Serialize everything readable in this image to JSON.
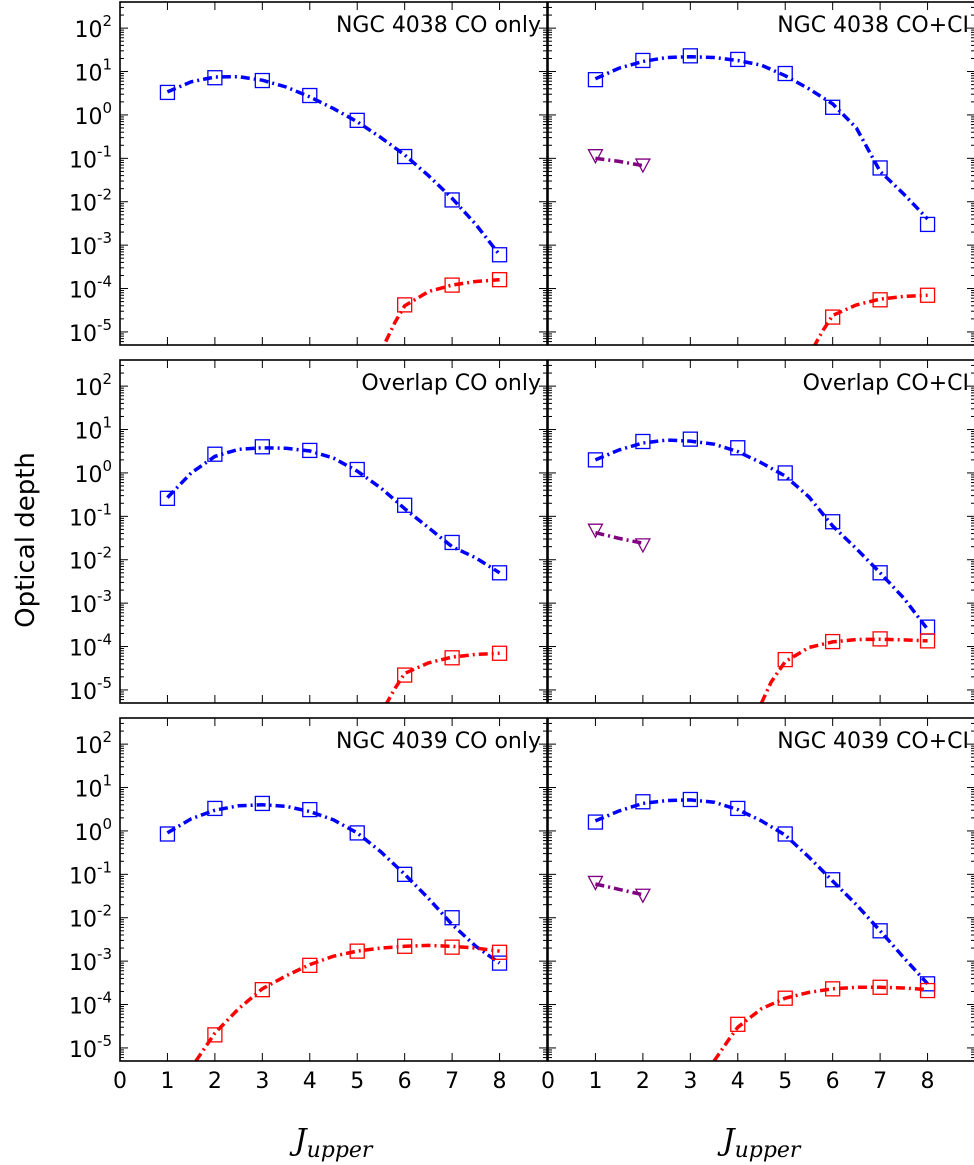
{
  "figure": {
    "ylabel": "Optical depth",
    "xlabel_main": "J",
    "xlabel_sub": "upper",
    "x_ticks": [
      "0",
      "1",
      "2",
      "3",
      "4",
      "5",
      "6",
      "7",
      "8"
    ],
    "y_ticks": [
      {
        "base": "10",
        "exp": "-5"
      },
      {
        "base": "10",
        "exp": "-4"
      },
      {
        "base": "10",
        "exp": "-3"
      },
      {
        "base": "10",
        "exp": "-2"
      },
      {
        "base": "10",
        "exp": "-1"
      },
      {
        "base": "10",
        "exp": "0"
      },
      {
        "base": "10",
        "exp": "1"
      },
      {
        "base": "10",
        "exp": "2"
      }
    ],
    "colors": {
      "component1": "#0000ff",
      "component2": "#ff0000",
      "ci": "#800080"
    }
  },
  "chart_data": [
    {
      "type": "line",
      "title": "NGC 4038 CO only",
      "xlim": [
        0,
        9
      ],
      "ylim": [
        5e-06,
        400
      ],
      "yscale": "log",
      "xlabel": "",
      "ylabel": "Optical depth",
      "series": [
        {
          "color": "#0000ff",
          "line_style": "dash-dot",
          "marker": "square",
          "x": [
            1,
            2,
            3,
            4,
            5,
            6,
            7,
            8
          ],
          "values": [
            3.3,
            7.2,
            6.2,
            2.8,
            0.75,
            0.11,
            0.011,
            0.0006
          ],
          "curve_x": [
            1,
            1.5,
            2,
            2.5,
            3,
            3.5,
            4,
            4.5,
            5,
            5.5,
            6,
            6.5,
            7,
            7.5,
            8
          ],
          "curve": [
            3.4,
            5.8,
            7.5,
            7.6,
            6.3,
            4.4,
            2.6,
            1.4,
            0.7,
            0.3,
            0.12,
            0.04,
            0.012,
            0.003,
            0.0006
          ]
        },
        {
          "color": "#ff0000",
          "line_style": "dash-dot",
          "marker": "square",
          "x": [
            6,
            7,
            8
          ],
          "values": [
            4.2e-05,
            0.00012,
            0.00016
          ],
          "curve_x": [
            5.6,
            5.8,
            6,
            6.5,
            7,
            7.5,
            8
          ],
          "curve": [
            6e-06,
            1.7e-05,
            4e-05,
            8.5e-05,
            0.00012,
            0.000145,
            0.00016
          ]
        }
      ]
    },
    {
      "type": "line",
      "title": "NGC 4038 CO+CI",
      "xlim": [
        0,
        9
      ],
      "ylim": [
        5e-06,
        400
      ],
      "yscale": "log",
      "xlabel": "",
      "ylabel": "",
      "series": [
        {
          "color": "#0000ff",
          "line_style": "dash-dot",
          "marker": "square",
          "x": [
            1,
            2,
            3,
            4,
            5,
            6,
            7,
            8
          ],
          "values": [
            6.5,
            18,
            23,
            19,
            9,
            1.5,
            0.06,
            0.003
          ],
          "curve_x": [
            1,
            1.5,
            2,
            2.5,
            3,
            3.5,
            4,
            4.5,
            5,
            5.5,
            6,
            6.5,
            7,
            7.5,
            8
          ],
          "curve": [
            6.8,
            12,
            17,
            21,
            22,
            21,
            18,
            14,
            8,
            4,
            1.8,
            0.5,
            0.05,
            0.015,
            0.004
          ]
        },
        {
          "color": "#800080",
          "line_style": "dash-dot",
          "marker": "triangle-down",
          "x": [
            1,
            2
          ],
          "values": [
            0.115,
            0.07
          ],
          "curve_x": [
            1,
            1.5,
            2
          ],
          "curve": [
            0.1,
            0.085,
            0.068
          ]
        },
        {
          "color": "#ff0000",
          "line_style": "dash-dot",
          "marker": "square",
          "x": [
            6,
            7,
            8
          ],
          "values": [
            2.2e-05,
            5.5e-05,
            7e-05
          ],
          "curve_x": [
            5.6,
            5.8,
            6,
            6.5,
            7,
            7.5,
            8
          ],
          "curve": [
            4.5e-06,
            1.1e-05,
            2.4e-05,
            4.2e-05,
            5.7e-05,
            6.6e-05,
            7e-05
          ]
        }
      ]
    },
    {
      "type": "line",
      "title": "Overlap CO only",
      "xlim": [
        0,
        9
      ],
      "ylim": [
        5e-06,
        400
      ],
      "yscale": "log",
      "xlabel": "",
      "ylabel": "Optical depth",
      "series": [
        {
          "color": "#0000ff",
          "line_style": "dash-dot",
          "marker": "square",
          "x": [
            1,
            2,
            3,
            4,
            5,
            6,
            7,
            8
          ],
          "values": [
            0.26,
            2.7,
            4.0,
            3.3,
            1.2,
            0.18,
            0.025,
            0.005
          ],
          "curve_x": [
            1,
            1.5,
            2,
            2.5,
            3,
            3.5,
            4,
            4.5,
            5,
            5.5,
            6,
            6.5,
            7,
            7.5,
            8
          ],
          "curve": [
            0.27,
            1.0,
            2.4,
            3.5,
            3.8,
            3.7,
            3.2,
            2.2,
            1.1,
            0.45,
            0.15,
            0.055,
            0.02,
            0.011,
            0.005
          ]
        },
        {
          "color": "#ff0000",
          "line_style": "dash-dot",
          "marker": "square",
          "x": [
            6,
            7,
            8
          ],
          "values": [
            2.2e-05,
            5.5e-05,
            7e-05
          ],
          "curve_x": [
            5.6,
            5.8,
            6,
            6.5,
            7,
            7.5,
            8
          ],
          "curve": [
            4.5e-06,
            1.1e-05,
            2.4e-05,
            4.2e-05,
            5.7e-05,
            6.6e-05,
            7e-05
          ]
        }
      ]
    },
    {
      "type": "line",
      "title": "Overlap CO+CI",
      "xlim": [
        0,
        9
      ],
      "ylim": [
        5e-06,
        400
      ],
      "yscale": "log",
      "xlabel": "",
      "ylabel": "",
      "series": [
        {
          "color": "#0000ff",
          "line_style": "dash-dot",
          "marker": "square",
          "x": [
            1,
            2,
            3,
            4,
            5,
            6,
            7,
            8
          ],
          "values": [
            2.0,
            5.3,
            6.0,
            3.8,
            1.0,
            0.075,
            0.005,
            0.00028
          ],
          "curve_x": [
            1,
            1.5,
            2,
            2.5,
            3,
            3.5,
            4,
            4.5,
            5,
            5.5,
            6,
            6.5,
            7,
            7.5,
            8
          ],
          "curve": [
            2.0,
            3.4,
            4.9,
            5.7,
            5.4,
            4.6,
            3.1,
            1.7,
            0.85,
            0.28,
            0.06,
            0.018,
            0.005,
            0.0013,
            0.00025
          ]
        },
        {
          "color": "#800080",
          "line_style": "dash-dot",
          "marker": "triangle-down",
          "x": [
            1,
            2
          ],
          "values": [
            0.048,
            0.022
          ],
          "curve_x": [
            1,
            1.5,
            2
          ],
          "curve": [
            0.042,
            0.031,
            0.024
          ]
        },
        {
          "color": "#ff0000",
          "line_style": "dash-dot",
          "marker": "square",
          "x": [
            5,
            6,
            7,
            8
          ],
          "values": [
            5e-05,
            0.00013,
            0.00015,
            0.000135
          ],
          "curve_x": [
            4.5,
            4.7,
            5,
            5.5,
            6,
            6.5,
            7,
            7.5,
            8
          ],
          "curve": [
            5e-06,
            1.5e-05,
            4.5e-05,
            9.5e-05,
            0.000128,
            0.000145,
            0.000147,
            0.000142,
            0.000135
          ]
        }
      ]
    },
    {
      "type": "line",
      "title": "NGC 4039 CO only",
      "xlim": [
        0,
        9
      ],
      "ylim": [
        5e-06,
        400
      ],
      "yscale": "log",
      "xlabel": "J_upper",
      "ylabel": "Optical depth",
      "series": [
        {
          "color": "#0000ff",
          "line_style": "dash-dot",
          "marker": "square",
          "x": [
            1,
            2,
            3,
            4,
            5,
            6,
            7,
            8
          ],
          "values": [
            0.85,
            3.3,
            4.3,
            3.1,
            0.9,
            0.1,
            0.01,
            0.0009
          ],
          "curve_x": [
            1,
            1.5,
            2,
            2.5,
            3,
            3.5,
            4,
            4.5,
            5,
            5.5,
            6,
            6.5,
            7,
            7.5,
            8
          ],
          "curve": [
            0.9,
            1.9,
            3.0,
            3.8,
            4.0,
            3.7,
            2.8,
            1.8,
            0.9,
            0.33,
            0.1,
            0.028,
            0.007,
            0.0022,
            0.0009
          ]
        },
        {
          "color": "#ff0000",
          "line_style": "dash-dot",
          "marker": "square",
          "x": [
            2,
            3,
            4,
            5,
            6,
            7,
            8
          ],
          "values": [
            2e-05,
            0.00022,
            0.0008,
            0.0017,
            0.0022,
            0.0021,
            0.0016
          ],
          "curve_x": [
            1.6,
            2,
            2.5,
            3,
            3.5,
            4,
            4.5,
            5,
            5.5,
            6,
            6.5,
            7,
            7.5,
            8
          ],
          "curve": [
            5e-06,
            2.2e-05,
            8e-05,
            0.00023,
            0.00046,
            0.00083,
            0.0013,
            0.0017,
            0.002,
            0.0022,
            0.0023,
            0.0022,
            0.002,
            0.0017
          ]
        }
      ]
    },
    {
      "type": "line",
      "title": "NGC 4039 CO+CI",
      "xlim": [
        0,
        9
      ],
      "ylim": [
        5e-06,
        400
      ],
      "yscale": "log",
      "xlabel": "J_upper",
      "ylabel": "",
      "series": [
        {
          "color": "#0000ff",
          "line_style": "dash-dot",
          "marker": "square",
          "x": [
            1,
            2,
            3,
            4,
            5,
            6,
            7,
            8
          ],
          "values": [
            1.6,
            4.7,
            5.3,
            3.3,
            0.85,
            0.075,
            0.005,
            0.0003
          ],
          "curve_x": [
            1,
            1.5,
            2,
            2.5,
            3,
            3.5,
            4,
            4.5,
            5,
            5.5,
            6,
            6.5,
            7,
            7.5,
            8
          ],
          "curve": [
            1.7,
            2.9,
            4.3,
            5.0,
            5.2,
            4.6,
            3.1,
            1.7,
            0.8,
            0.25,
            0.07,
            0.02,
            0.005,
            0.0012,
            0.0003
          ]
        },
        {
          "color": "#800080",
          "line_style": "dash-dot",
          "marker": "triangle-down",
          "x": [
            1,
            2
          ],
          "values": [
            0.065,
            0.033
          ],
          "curve_x": [
            1,
            1.5,
            2
          ],
          "curve": [
            0.06,
            0.045,
            0.034
          ]
        },
        {
          "color": "#ff0000",
          "line_style": "dash-dot",
          "marker": "square",
          "x": [
            4,
            5,
            6,
            7,
            8
          ],
          "values": [
            3.5e-05,
            0.00014,
            0.00023,
            0.00025,
            0.00021
          ],
          "curve_x": [
            3.5,
            3.8,
            4,
            4.5,
            5,
            5.5,
            6,
            6.5,
            7,
            7.5,
            8
          ],
          "curve": [
            5e-06,
            1.5e-05,
            3e-05,
            8e-05,
            0.00014,
            0.00019,
            0.00023,
            0.00025,
            0.00025,
            0.00024,
            0.00022
          ]
        }
      ]
    }
  ]
}
